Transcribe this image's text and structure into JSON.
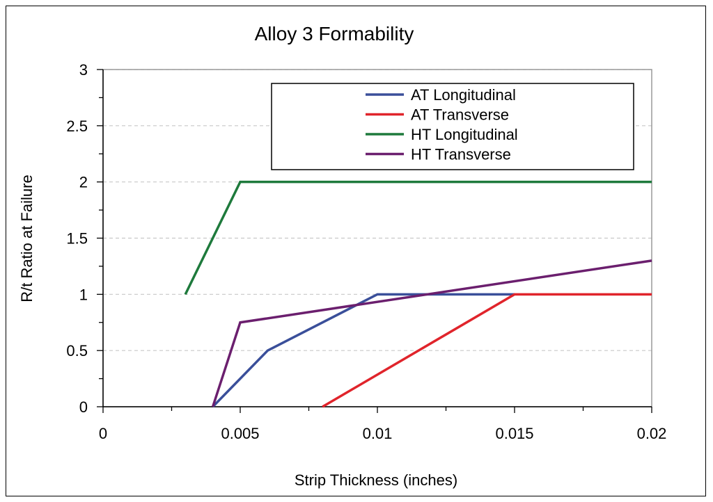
{
  "chart_data": {
    "type": "line",
    "title": "Alloy 3 Formability",
    "xlabel": "Strip Thickness (inches)",
    "ylabel": "R/t Ratio at Failure",
    "xlim": [
      0,
      0.02
    ],
    "ylim": [
      0,
      3
    ],
    "x_ticks": [
      "0",
      "0.005",
      "0.01",
      "0.015",
      "0.02"
    ],
    "y_ticks": [
      "0",
      "0.5",
      "1",
      "1.5",
      "2",
      "2.5",
      "3"
    ],
    "grid": "horizontal dashed",
    "legend_position": "top-right",
    "series": [
      {
        "name": "AT Longitudinal",
        "color": "#3a4f9a",
        "x": [
          0.004,
          0.006,
          0.01,
          0.015
        ],
        "y": [
          0,
          0.5,
          1,
          1
        ]
      },
      {
        "name": "AT Transverse",
        "color": "#e0242b",
        "x": [
          0.008,
          0.015,
          0.02
        ],
        "y": [
          0,
          1,
          1
        ]
      },
      {
        "name": "HT Longitudinal",
        "color": "#1e7a3c",
        "x": [
          0.003,
          0.005,
          0.02
        ],
        "y": [
          1,
          2,
          2
        ]
      },
      {
        "name": "HT Transverse",
        "color": "#6b1f6e",
        "x": [
          0.004,
          0.005,
          0.02
        ],
        "y": [
          0,
          0.75,
          1.3
        ]
      }
    ]
  }
}
